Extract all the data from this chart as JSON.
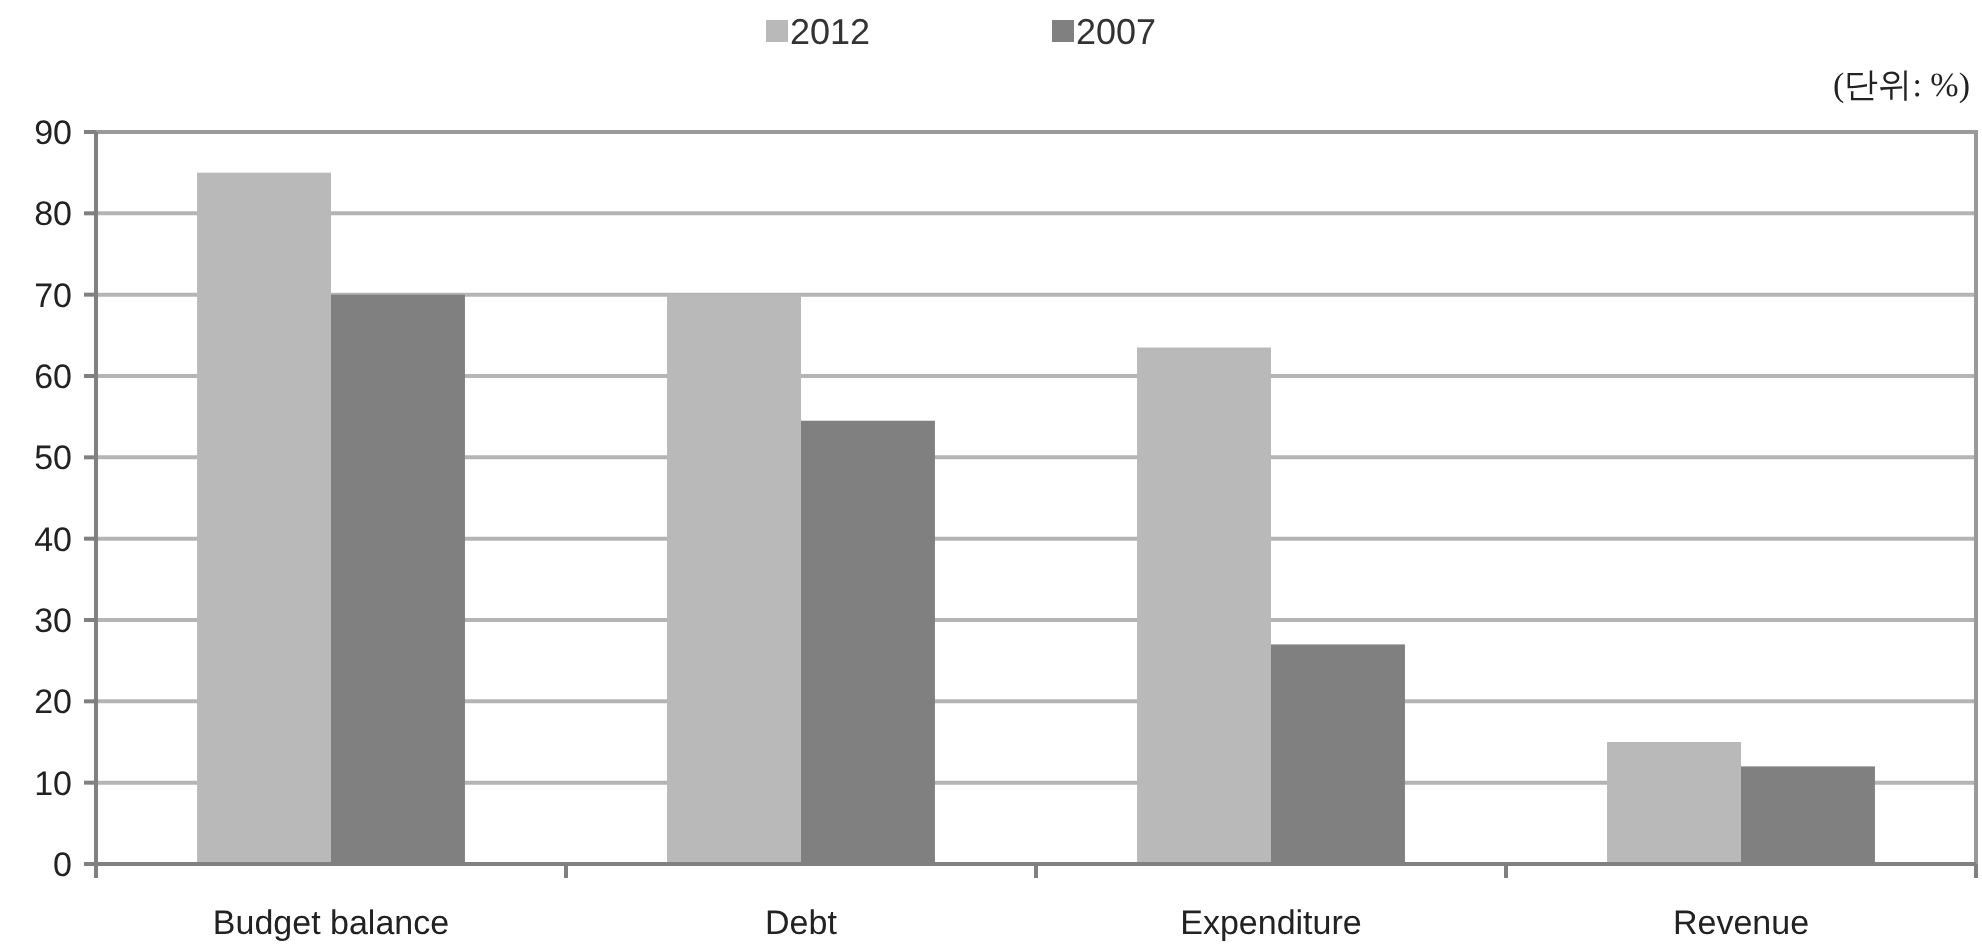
{
  "chart_data": {
    "type": "bar",
    "categories": [
      "Budget balance",
      "Debt",
      "Expenditure",
      "Revenue"
    ],
    "series": [
      {
        "name": "2012",
        "color": "#b9b9b9",
        "values": [
          85,
          70,
          63.5,
          15
        ]
      },
      {
        "name": "2007",
        "color": "#808080",
        "values": [
          70,
          54.5,
          27,
          12
        ]
      }
    ],
    "ylim": [
      0,
      90
    ],
    "yticks": [
      0,
      10,
      20,
      30,
      40,
      50,
      60,
      70,
      80,
      90
    ],
    "grid": "y",
    "legend": "top",
    "annotations": [
      "(단위: %)"
    ]
  }
}
